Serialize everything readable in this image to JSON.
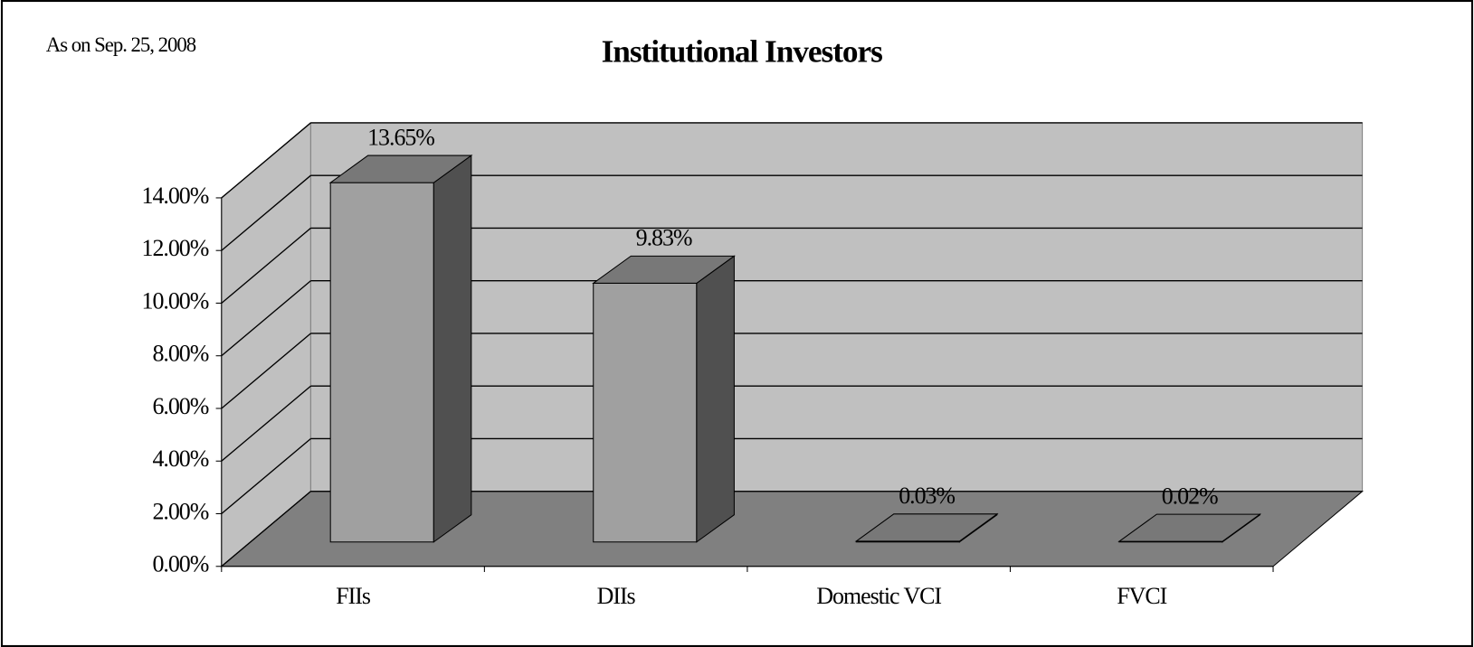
{
  "chart_data": {
    "type": "bar3d",
    "title": "Institutional Investors",
    "annotation": "As on Sep. 25, 2008",
    "categories": [
      "FIIs",
      "DIIs",
      "Domestic VCI",
      "FVCI"
    ],
    "values": [
      13.65,
      9.83,
      0.03,
      0.02
    ],
    "value_labels": [
      "13.65%",
      "9.83%",
      "0.03%",
      "0.02%"
    ],
    "color": "#a0a0a0",
    "ylim": [
      0,
      14
    ],
    "yticks": [
      {
        "value": 0,
        "label": "0.00%"
      },
      {
        "value": 2,
        "label": "2.00%"
      },
      {
        "value": 4,
        "label": "4.00%"
      },
      {
        "value": 6,
        "label": "6.00%"
      },
      {
        "value": 8,
        "label": "8.00%"
      },
      {
        "value": 10,
        "label": "10.00%"
      },
      {
        "value": 12,
        "label": "12.00%"
      },
      {
        "value": 14,
        "label": "14.00%"
      }
    ],
    "grid": true
  }
}
